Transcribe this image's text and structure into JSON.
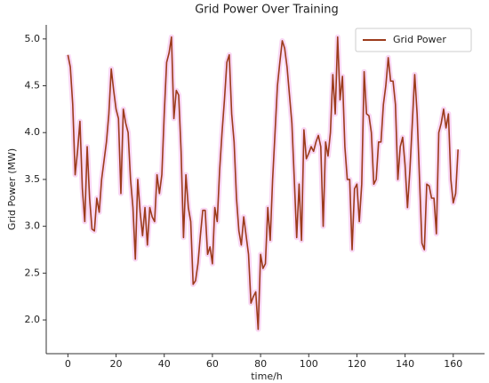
{
  "chart_data": {
    "type": "line",
    "title": "Grid Power Over Training",
    "x_label": "time/h",
    "y_label": "Grid Power (MW)",
    "x": [
      0,
      1,
      2,
      3,
      4,
      5,
      6,
      7,
      8,
      9,
      10,
      11,
      12,
      13,
      14,
      15,
      16,
      17,
      18,
      19,
      20,
      21,
      22,
      23,
      24,
      25,
      26,
      27,
      28,
      29,
      30,
      31,
      32,
      33,
      34,
      35,
      36,
      37,
      38,
      39,
      40,
      41,
      42,
      43,
      44,
      45,
      46,
      47,
      48,
      49,
      50,
      51,
      52,
      53,
      54,
      55,
      56,
      57,
      58,
      59,
      60,
      61,
      62,
      63,
      64,
      65,
      66,
      67,
      68,
      69,
      70,
      71,
      72,
      73,
      74,
      75,
      76,
      77,
      78,
      79,
      80,
      81,
      82,
      83,
      84,
      85,
      86,
      87,
      88,
      89,
      90,
      91,
      92,
      93,
      94,
      95,
      96,
      97,
      98,
      99,
      100,
      101,
      102,
      103,
      104,
      105,
      106,
      107,
      108,
      109,
      110,
      111,
      112,
      113,
      114,
      115,
      116,
      117,
      118,
      119,
      120,
      121,
      122,
      123,
      124,
      125,
      126,
      127,
      128,
      129,
      130,
      131,
      132,
      133,
      134,
      135,
      136,
      137,
      138,
      139,
      140,
      141,
      142,
      143,
      144,
      145,
      146,
      147,
      148,
      149,
      150,
      151,
      152,
      153,
      154,
      155,
      156,
      157,
      158,
      159,
      160,
      161,
      162
    ],
    "series": [
      {
        "name": "Grid Power",
        "color": "#9c3b1b",
        "values": [
          4.83,
          4.7,
          4.3,
          3.55,
          3.8,
          4.12,
          3.4,
          3.05,
          3.85,
          3.3,
          2.97,
          2.95,
          3.3,
          3.15,
          3.5,
          3.7,
          3.9,
          4.2,
          4.68,
          4.45,
          4.25,
          4.15,
          3.35,
          4.25,
          4.1,
          4.0,
          3.5,
          3.2,
          2.65,
          3.5,
          3.15,
          2.9,
          3.2,
          2.8,
          3.2,
          3.1,
          3.05,
          3.55,
          3.35,
          3.55,
          4.2,
          4.75,
          4.85,
          5.02,
          4.15,
          4.45,
          4.4,
          3.8,
          2.88,
          3.55,
          3.2,
          3.05,
          2.38,
          2.42,
          2.6,
          2.9,
          3.17,
          3.17,
          2.7,
          2.78,
          2.6,
          3.2,
          3.05,
          3.6,
          4.0,
          4.35,
          4.75,
          4.83,
          4.2,
          3.9,
          3.3,
          2.95,
          2.8,
          3.1,
          2.9,
          2.7,
          2.18,
          2.25,
          2.3,
          1.9,
          2.7,
          2.55,
          2.6,
          3.2,
          2.85,
          3.5,
          4.0,
          4.5,
          4.75,
          4.98,
          4.9,
          4.7,
          4.4,
          4.1,
          3.5,
          2.88,
          3.45,
          2.85,
          4.03,
          3.72,
          3.78,
          3.85,
          3.8,
          3.9,
          3.97,
          3.85,
          3.0,
          3.9,
          3.75,
          4.0,
          4.62,
          4.2,
          5.02,
          4.35,
          4.6,
          3.85,
          3.5,
          3.5,
          2.75,
          3.4,
          3.45,
          3.05,
          3.45,
          4.65,
          4.2,
          4.18,
          4.0,
          3.45,
          3.5,
          3.9,
          3.9,
          4.3,
          4.5,
          4.8,
          4.55,
          4.55,
          4.3,
          3.5,
          3.85,
          3.95,
          3.65,
          3.2,
          3.6,
          4.1,
          4.62,
          4.2,
          3.5,
          2.82,
          2.75,
          3.45,
          3.43,
          3.3,
          3.3,
          2.92,
          4.0,
          4.1,
          4.25,
          4.05,
          4.2,
          3.5,
          3.25,
          3.35,
          3.82
        ]
      }
    ],
    "xlim": [
      -9,
      173
    ],
    "ylim": [
      1.64,
      5.15
    ],
    "xticks": [
      0,
      20,
      40,
      60,
      80,
      100,
      120,
      140,
      160
    ],
    "yticks": [
      {
        "value": 2,
        "label": "2.0"
      },
      {
        "value": 2.5,
        "label": "2.5"
      },
      {
        "value": 3,
        "label": "3.0"
      },
      {
        "value": 3.5,
        "label": "3.5"
      },
      {
        "value": 4,
        "label": "4.0"
      },
      {
        "value": 4.5,
        "label": "4.5"
      },
      {
        "value": 5,
        "label": "5.0"
      }
    ],
    "legend": "upper right",
    "grid": false
  }
}
